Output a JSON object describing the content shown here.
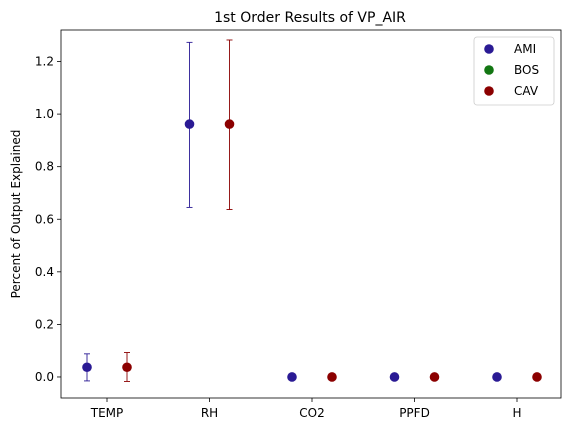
{
  "chart_data": {
    "type": "scatter",
    "title": "1st Order Results of VP_AIR",
    "xlabel": "",
    "ylabel": "Percent of Output Explained",
    "categories": [
      "TEMP",
      "RH",
      "CO2",
      "PPFD",
      "H"
    ],
    "ylim": [
      -0.08,
      1.32
    ],
    "yticks": [
      "0.0",
      "0.2",
      "0.4",
      "0.6",
      "0.8",
      "1.0",
      "1.2"
    ],
    "grid": false,
    "legend_position": "top-right",
    "series": [
      {
        "name": "AMI",
        "color": "#2a1a94",
        "values": [
          0.037,
          0.962,
          0.0,
          0.0,
          0.0
        ],
        "err_low": [
          -0.015,
          0.645,
          null,
          null,
          null
        ],
        "err_high": [
          0.088,
          1.273,
          null,
          null,
          null
        ]
      },
      {
        "name": "BOS",
        "color": "#127612",
        "values": [
          null,
          null,
          null,
          null,
          null
        ],
        "err_low": [
          null,
          null,
          null,
          null,
          null
        ],
        "err_high": [
          null,
          null,
          null,
          null,
          null
        ]
      },
      {
        "name": "CAV",
        "color": "#8b0000",
        "values": [
          0.037,
          0.962,
          0.0,
          0.0,
          0.0
        ],
        "err_low": [
          -0.017,
          0.637,
          null,
          null,
          null
        ],
        "err_high": [
          0.093,
          1.282,
          null,
          null,
          null
        ]
      }
    ]
  }
}
